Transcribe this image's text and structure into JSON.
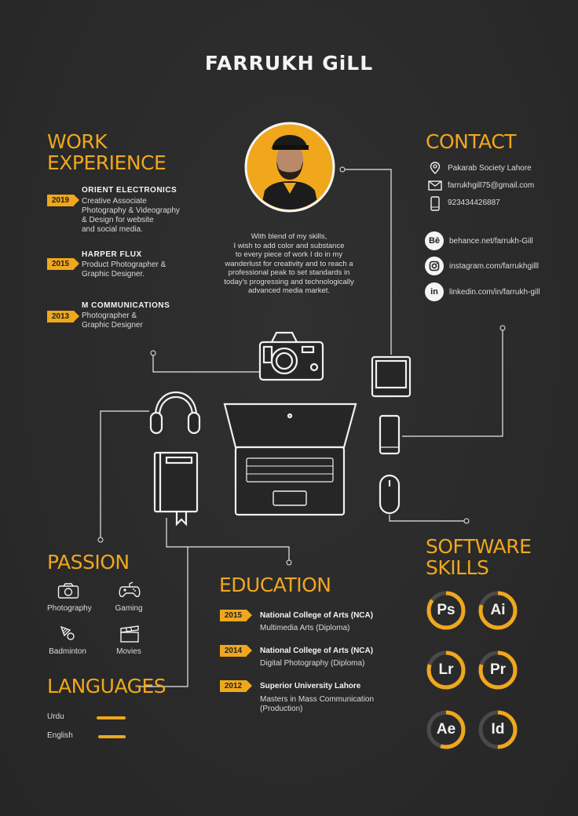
{
  "name": "FARRUKH GiLL",
  "bio": "With blend of my skills,\nI wish to add color and substance\nto every piece of work I do in my\nwanderlust for creativity and to reach a\nprofessional peak to set standards in\ntoday's progressing and technologically\nadvanced media market.",
  "work": {
    "heading": "WORK\nEXPERIENCE",
    "jobs": [
      {
        "year": "2019",
        "company": "ORIENT ELECTRONICS",
        "role": "Creative Associate\nPhotography & Videography\n& Design for website\nand social media."
      },
      {
        "year": "2015",
        "company": "HARPER FLUX",
        "role": "Product Photographer &\nGraphic Designer."
      },
      {
        "year": "2013",
        "company": "M COMMUNICATIONS",
        "role": "Photographer &\nGraphic Designer"
      }
    ]
  },
  "contact": {
    "heading": "CONTACT",
    "address": "Pakarab Society Lahore",
    "email": "farrukhgill75@gmail.com",
    "phone": "923434426887",
    "behance": "behance.net/farrukh-Gill",
    "instagram": "instagram.com/farrukhgilll",
    "linkedin": "linkedin.com/in/farrukh-gill",
    "behance_badge": "Bē",
    "linkedin_badge": "in"
  },
  "passion": {
    "heading": "PASSION",
    "items": [
      "Photography",
      "Gaming",
      "Badminton",
      "Movies"
    ]
  },
  "languages": {
    "heading": "LANGUAGES",
    "items": [
      {
        "name": "Urdu",
        "level": 1.0
      },
      {
        "name": "English",
        "level": 1.0
      }
    ]
  },
  "education": {
    "heading": "EDUCATION",
    "items": [
      {
        "year": "2015",
        "school": "National College of Arts (NCA)",
        "degree": "Multimedia Arts (Diploma)"
      },
      {
        "year": "2014",
        "school": "National College of Arts (NCA)",
        "degree": "Digital Photography (Diploma)"
      },
      {
        "year": "2012",
        "school": "Superior University Lahore",
        "degree": "Masters in Mass Communication\n(Production)"
      }
    ]
  },
  "software": {
    "heading": "SOFTWARE\nSKILLS",
    "accent": "#f0a71c",
    "track": "#4a4a4a",
    "items": [
      {
        "abbr": "Ps",
        "level": 0.85
      },
      {
        "abbr": "Ai",
        "level": 0.8
      },
      {
        "abbr": "Lr",
        "level": 0.8
      },
      {
        "abbr": "Pr",
        "level": 0.8
      },
      {
        "abbr": "Ae",
        "level": 0.55
      },
      {
        "abbr": "Id",
        "level": 0.5
      }
    ]
  }
}
